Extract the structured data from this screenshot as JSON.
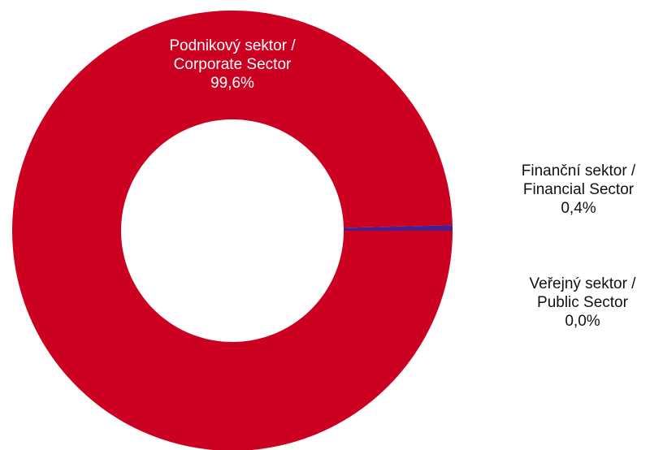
{
  "chart_data": {
    "type": "donut",
    "categories": [
      "Podnikový sektor /\nCorporate Sector",
      "Finanční sektor /\nFinancial Sector",
      "Veřejný sektor /\nPublic Sector"
    ],
    "values": [
      99.6,
      0.4,
      0.0
    ],
    "value_labels": [
      "99,6%",
      "0,4%",
      "0,0%"
    ],
    "colors": [
      "#cc0020",
      "#4a1e8c",
      "#7f7f7f"
    ]
  }
}
